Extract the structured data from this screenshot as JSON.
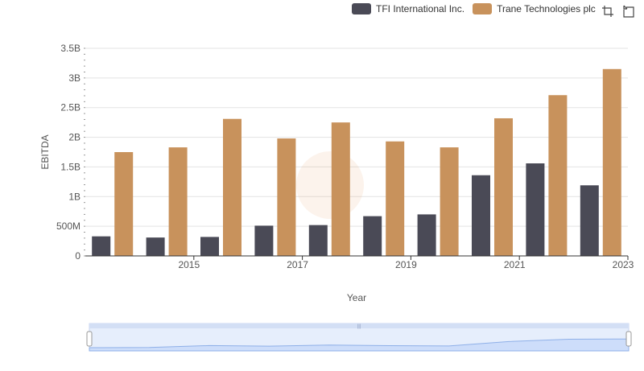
{
  "legend": {
    "items": [
      {
        "label": "TFI International Inc.",
        "color": "#4a4a56"
      },
      {
        "label": "Trane Technologies plc",
        "color": "#c8925c"
      }
    ]
  },
  "toolbar": {
    "icons": [
      "zoom-icon",
      "reset-zoom-icon"
    ]
  },
  "chart_data": {
    "type": "bar",
    "xlabel": "Year",
    "ylabel": "EBITDA",
    "x": [
      2014,
      2015,
      2016,
      2017,
      2018,
      2019,
      2020,
      2021,
      2022,
      2023
    ],
    "x_tick_labels": [
      "2015",
      "2017",
      "2019",
      "2021",
      "2023"
    ],
    "y_tick_labels": [
      "0",
      "500M",
      "1B",
      "1.5B",
      "2B",
      "2.5B",
      "3B",
      "3.5B"
    ],
    "ylim": [
      0,
      3500000000
    ],
    "grid": true,
    "legend_position": "top-right",
    "series": [
      {
        "name": "TFI International Inc.",
        "color": "#4a4a56",
        "values": [
          330000000,
          310000000,
          320000000,
          510000000,
          520000000,
          670000000,
          700000000,
          1360000000,
          1560000000,
          1190000000
        ]
      },
      {
        "name": "Trane Technologies plc",
        "color": "#c8925c",
        "values": [
          1750000000,
          1830000000,
          2310000000,
          1980000000,
          2250000000,
          1930000000,
          1830000000,
          2320000000,
          2710000000,
          3150000000
        ]
      }
    ]
  }
}
